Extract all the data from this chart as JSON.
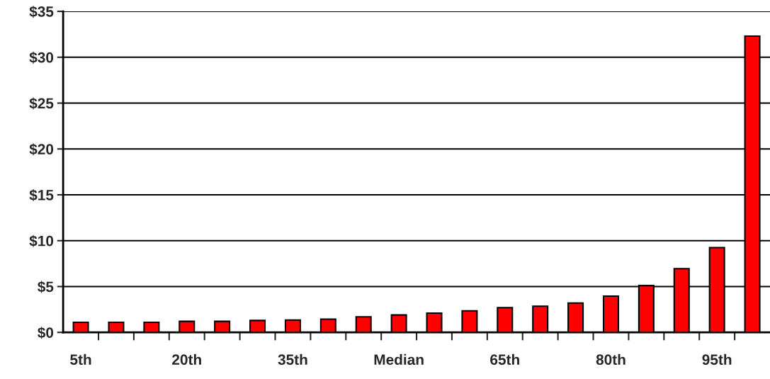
{
  "chart_data": {
    "type": "bar",
    "categories": [
      "5th",
      null,
      null,
      "20th",
      null,
      null,
      "35th",
      null,
      null,
      "Median",
      null,
      null,
      "65th",
      null,
      null,
      "80th",
      null,
      null,
      "95th",
      null
    ],
    "values": [
      1.1,
      1.1,
      1.1,
      1.2,
      1.2,
      1.3,
      1.35,
      1.45,
      1.7,
      1.9,
      2.1,
      2.35,
      2.7,
      2.85,
      3.2,
      3.95,
      5.1,
      6.95,
      9.25,
      32.3
    ],
    "color": "#ff0000",
    "ylim": [
      0,
      35
    ],
    "yticks": [
      {
        "value": 0,
        "label": "$0"
      },
      {
        "value": 5,
        "label": "$5"
      },
      {
        "value": 10,
        "label": "$10"
      },
      {
        "value": 15,
        "label": "$15"
      },
      {
        "value": 20,
        "label": "$20"
      },
      {
        "value": 25,
        "label": "$25"
      },
      {
        "value": 30,
        "label": "$30"
      },
      {
        "value": 35,
        "label": "$35"
      }
    ],
    "grid": "y"
  }
}
